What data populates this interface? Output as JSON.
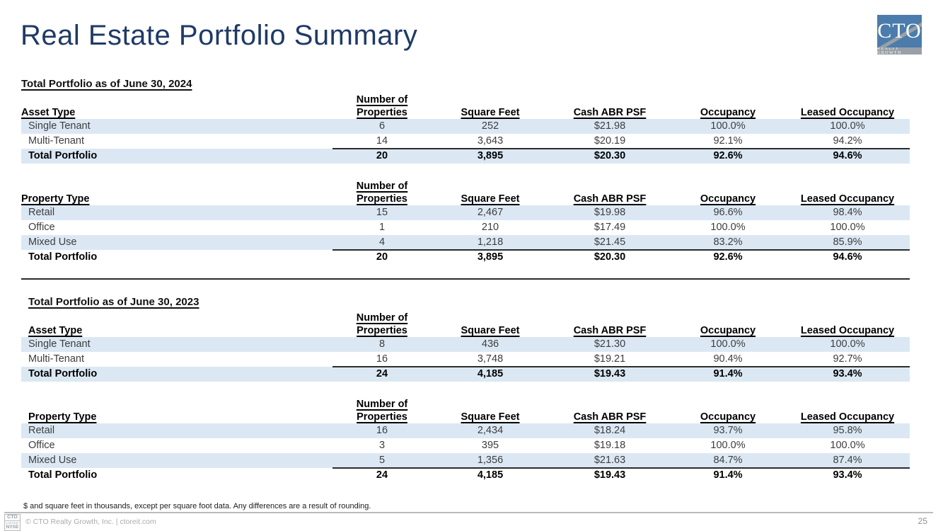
{
  "title": "Real Estate Portfolio Summary",
  "logo": {
    "text": "CTO",
    "subtext": "REALTY GROWTH"
  },
  "colors": {
    "accent_navy": "#1f3a66",
    "row_band_blue": "#dbe8f4",
    "logo_blue": "#4b7cab",
    "logo_gray": "#99a0a8"
  },
  "columns": [
    {
      "top": "Number of",
      "bottom": "Properties"
    },
    {
      "top": "",
      "bottom": "Square Feet"
    },
    {
      "top": "",
      "bottom": "Cash ABR PSF"
    },
    {
      "top": "",
      "bottom": "Occupancy"
    },
    {
      "top": "",
      "bottom": "Leased Occupancy"
    }
  ],
  "sections": [
    {
      "heading": "Total Portfolio as of June 30, 2024",
      "indented": false,
      "tables": [
        {
          "row_label_header": "Asset Type",
          "rows": [
            {
              "label": "Single Tenant",
              "values": [
                "6",
                "252",
                "$21.98",
                "100.0%",
                "100.0%"
              ]
            },
            {
              "label": "Multi-Tenant",
              "values": [
                "14",
                "3,643",
                "$20.19",
                "92.1%",
                "94.2%"
              ]
            }
          ],
          "total": {
            "label": "Total Portfolio",
            "values": [
              "20",
              "3,895",
              "$20.30",
              "92.6%",
              "94.6%"
            ]
          }
        },
        {
          "row_label_header": "Property Type",
          "rows": [
            {
              "label": "Retail",
              "values": [
                "15",
                "2,467",
                "$19.98",
                "96.6%",
                "98.4%"
              ]
            },
            {
              "label": "Office",
              "values": [
                "1",
                "210",
                "$17.49",
                "100.0%",
                "100.0%"
              ]
            },
            {
              "label": "Mixed Use",
              "values": [
                "4",
                "1,218",
                "$21.45",
                "83.2%",
                "85.9%"
              ]
            }
          ],
          "total": {
            "label": "Total Portfolio",
            "values": [
              "20",
              "3,895",
              "$20.30",
              "92.6%",
              "94.6%"
            ]
          }
        }
      ]
    },
    {
      "heading": "Total Portfolio as of June 30, 2023",
      "indented": true,
      "tables": [
        {
          "row_label_header": "Asset Type",
          "rows": [
            {
              "label": "Single Tenant",
              "values": [
                "8",
                "436",
                "$21.30",
                "100.0%",
                "100.0%"
              ]
            },
            {
              "label": "Multi-Tenant",
              "values": [
                "16",
                "3,748",
                "$19.21",
                "90.4%",
                "92.7%"
              ]
            }
          ],
          "total": {
            "label": "Total Portfolio",
            "values": [
              "24",
              "4,185",
              "$19.43",
              "91.4%",
              "93.4%"
            ]
          }
        },
        {
          "row_label_header": "Property Type",
          "rows": [
            {
              "label": "Retail",
              "values": [
                "16",
                "2,434",
                "$18.24",
                "93.7%",
                "95.8%"
              ]
            },
            {
              "label": "Office",
              "values": [
                "3",
                "395",
                "$19.18",
                "100.0%",
                "100.0%"
              ]
            },
            {
              "label": "Mixed Use",
              "values": [
                "5",
                "1,356",
                "$21.63",
                "84.7%",
                "87.4%"
              ]
            }
          ],
          "total": {
            "label": "Total Portfolio",
            "values": [
              "24",
              "4,185",
              "$19.43",
              "91.4%",
              "93.4%"
            ]
          }
        }
      ]
    }
  ],
  "footnote": "$ and square feet in thousands, except per square foot data. Any differences are a result of rounding.",
  "footer": {
    "badge": {
      "line1": "CTO",
      "line2": "LISTED",
      "line3": "NYSE"
    },
    "text": "© CTO Realty Growth, Inc. | ctoreit.com",
    "page_number": "25"
  }
}
